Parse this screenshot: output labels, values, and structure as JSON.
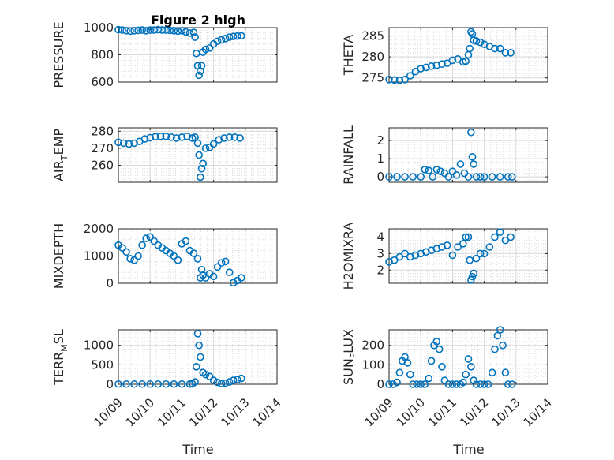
{
  "figure": {
    "title": "Figure 2 high",
    "x_axis_label": "Time",
    "marker_color": "#0072BD"
  },
  "chart_data": [
    {
      "type": "scatter",
      "ylabel": "PRESSURE",
      "xlim": [
        "10/09",
        "10/14"
      ],
      "ylim": [
        600,
        1000
      ],
      "yticks": [
        600,
        800,
        1000
      ],
      "xtick_labels": [
        "10/09",
        "10/10",
        "10/11",
        "10/12",
        "10/13",
        "10/14"
      ],
      "show_xtick_labels": false,
      "grid": "on",
      "x": [
        "10/09 00:00",
        "10/09 03:00",
        "10/09 06:00",
        "10/09 09:00",
        "10/09 12:00",
        "10/09 15:00",
        "10/09 18:00",
        "10/09 21:00",
        "10/10 00:00",
        "10/10 03:00",
        "10/10 06:00",
        "10/10 09:00",
        "10/10 12:00",
        "10/10 15:00",
        "10/10 18:00",
        "10/10 21:00",
        "10/11 00:00",
        "10/11 03:00",
        "10/11 06:00",
        "10/11 09:00",
        "10/11 10:00",
        "10/11 11:00",
        "10/11 12:00",
        "10/11 13:00",
        "10/11 14:00",
        "10/11 15:00",
        "10/11 16:00",
        "10/11 18:00",
        "10/11 21:00",
        "10/12 00:00",
        "10/12 03:00",
        "10/12 06:00",
        "10/12 09:00",
        "10/12 12:00",
        "10/12 15:00",
        "10/12 18:00",
        "10/12 21:00"
      ],
      "y": [
        985,
        982,
        978,
        975,
        978,
        980,
        982,
        978,
        982,
        982,
        985,
        983,
        982,
        980,
        978,
        975,
        978,
        968,
        960,
        965,
        930,
        810,
        720,
        650,
        680,
        720,
        820,
        840,
        850,
        880,
        900,
        910,
        920,
        930,
        935,
        938,
        940
      ]
    },
    {
      "type": "scatter",
      "ylabel": "THETA",
      "xlim": [
        "10/09",
        "10/14"
      ],
      "ylim": [
        274,
        287
      ],
      "yticks": [
        275,
        280,
        285
      ],
      "xtick_labels": [
        "10/09",
        "10/10",
        "10/11",
        "10/12",
        "10/13",
        "10/14"
      ],
      "show_xtick_labels": false,
      "grid": "on",
      "x": [
        "10/09 00:00",
        "10/09 04:00",
        "10/09 08:00",
        "10/09 12:00",
        "10/09 16:00",
        "10/09 20:00",
        "10/10 00:00",
        "10/10 04:00",
        "10/10 08:00",
        "10/10 12:00",
        "10/10 16:00",
        "10/10 20:00",
        "10/11 00:00",
        "10/11 04:00",
        "10/11 08:00",
        "10/11 10:00",
        "10/11 12:00",
        "10/11 13:00",
        "10/11 14:00",
        "10/11 15:00",
        "10/11 16:00",
        "10/11 18:00",
        "10/11 21:00",
        "10/12 00:00",
        "10/12 04:00",
        "10/12 08:00",
        "10/12 12:00",
        "10/12 16:00",
        "10/12 20:00"
      ],
      "y": [
        274.6,
        274.5,
        274.4,
        274.6,
        275.5,
        276.5,
        277.2,
        277.5,
        277.8,
        278.0,
        278.3,
        278.5,
        279.2,
        279.5,
        278.8,
        279.0,
        280.5,
        282.0,
        286.0,
        285.5,
        284.0,
        283.8,
        283.5,
        283.0,
        282.5,
        282.0,
        282.0,
        281.0,
        281.0
      ]
    },
    {
      "type": "scatter",
      "ylabel": "AIR_TEMP",
      "xlim": [
        "10/09",
        "10/14"
      ],
      "ylim": [
        250,
        282
      ],
      "yticks": [
        260,
        270,
        280
      ],
      "xtick_labels": [
        "10/09",
        "10/10",
        "10/11",
        "10/12",
        "10/13",
        "10/14"
      ],
      "show_xtick_labels": false,
      "grid": "on",
      "x": [
        "10/09 00:00",
        "10/09 04:00",
        "10/09 08:00",
        "10/09 12:00",
        "10/09 16:00",
        "10/09 20:00",
        "10/10 00:00",
        "10/10 04:00",
        "10/10 08:00",
        "10/10 12:00",
        "10/10 16:00",
        "10/10 20:00",
        "10/11 00:00",
        "10/11 04:00",
        "10/11 08:00",
        "10/11 10:00",
        "10/11 12:00",
        "10/11 13:00",
        "10/11 14:00",
        "10/11 15:00",
        "10/11 16:00",
        "10/11 18:00",
        "10/11 21:00",
        "10/12 00:00",
        "10/12 04:00",
        "10/12 08:00",
        "10/12 12:00",
        "10/12 16:00",
        "10/12 20:00"
      ],
      "y": [
        273.5,
        273.0,
        272.5,
        273.0,
        274.0,
        275.5,
        276.2,
        276.8,
        277.0,
        277.0,
        276.5,
        276.0,
        276.5,
        277.0,
        276.0,
        276.5,
        273.0,
        266.0,
        253.0,
        258.0,
        261.0,
        270.0,
        270.5,
        272.5,
        275.0,
        276.0,
        276.5,
        276.5,
        276.0
      ]
    },
    {
      "type": "scatter",
      "ylabel": "RAINFALL",
      "xlim": [
        "10/09",
        "10/14"
      ],
      "ylim": [
        -0.3,
        2.7
      ],
      "yticks": [
        0,
        1,
        2
      ],
      "xtick_labels": [
        "10/09",
        "10/10",
        "10/11",
        "10/12",
        "10/13",
        "10/14"
      ],
      "show_xtick_labels": false,
      "grid": "on",
      "x": [
        "10/09 00:00",
        "10/09 06:00",
        "10/09 12:00",
        "10/09 18:00",
        "10/10 00:00",
        "10/10 03:00",
        "10/10 06:00",
        "10/10 09:00",
        "10/10 12:00",
        "10/10 15:00",
        "10/10 18:00",
        "10/10 21:00",
        "10/11 00:00",
        "10/11 03:00",
        "10/11 06:00",
        "10/11 09:00",
        "10/11 12:00",
        "10/11 14:00",
        "10/11 15:00",
        "10/11 16:00",
        "10/11 18:00",
        "10/11 21:00",
        "10/12 00:00",
        "10/12 06:00",
        "10/12 12:00",
        "10/12 18:00",
        "10/12 21:00"
      ],
      "y": [
        0,
        0,
        0,
        0,
        0,
        0.4,
        0.35,
        0,
        0.4,
        0.3,
        0.2,
        0,
        0.3,
        0.1,
        0.7,
        0.2,
        0,
        2.45,
        1.1,
        0.7,
        0,
        0,
        0,
        0,
        0,
        0,
        0
      ]
    },
    {
      "type": "scatter",
      "ylabel": "MIXDEPTH",
      "xlim": [
        "10/09",
        "10/14"
      ],
      "ylim": [
        0,
        2000
      ],
      "yticks": [
        0,
        1000,
        2000
      ],
      "xtick_labels": [
        "10/09",
        "10/10",
        "10/11",
        "10/12",
        "10/13",
        "10/14"
      ],
      "show_xtick_labels": false,
      "grid": "on",
      "x": [
        "10/09 00:00",
        "10/09 03:00",
        "10/09 06:00",
        "10/09 09:00",
        "10/09 12:00",
        "10/09 15:00",
        "10/09 18:00",
        "10/09 21:00",
        "10/10 00:00",
        "10/10 03:00",
        "10/10 06:00",
        "10/10 09:00",
        "10/10 12:00",
        "10/10 15:00",
        "10/10 18:00",
        "10/10 21:00",
        "10/11 00:00",
        "10/11 03:00",
        "10/11 06:00",
        "10/11 09:00",
        "10/11 12:00",
        "10/11 14:00",
        "10/11 15:00",
        "10/11 16:00",
        "10/11 18:00",
        "10/11 21:00",
        "10/12 00:00",
        "10/12 03:00",
        "10/12 06:00",
        "10/12 09:00",
        "10/12 12:00",
        "10/12 15:00",
        "10/12 18:00",
        "10/12 21:00"
      ],
      "y": [
        1400,
        1300,
        1150,
        900,
        850,
        1000,
        1400,
        1650,
        1700,
        1550,
        1400,
        1300,
        1200,
        1100,
        1000,
        850,
        1450,
        1550,
        1200,
        1100,
        900,
        200,
        500,
        300,
        200,
        350,
        250,
        600,
        750,
        800,
        400,
        20,
        100,
        200
      ]
    },
    {
      "type": "scatter",
      "ylabel": "H2OMIXRA",
      "xlim": [
        "10/09",
        "10/14"
      ],
      "ylim": [
        1.2,
        4.5
      ],
      "yticks": [
        2,
        3,
        4
      ],
      "xtick_labels": [
        "10/09",
        "10/10",
        "10/11",
        "10/12",
        "10/13",
        "10/14"
      ],
      "show_xtick_labels": false,
      "grid": "on",
      "x": [
        "10/09 00:00",
        "10/09 04:00",
        "10/09 08:00",
        "10/09 12:00",
        "10/09 16:00",
        "10/09 20:00",
        "10/10 00:00",
        "10/10 04:00",
        "10/10 08:00",
        "10/10 12:00",
        "10/10 16:00",
        "10/10 20:00",
        "10/11 00:00",
        "10/11 04:00",
        "10/11 08:00",
        "10/11 10:00",
        "10/11 12:00",
        "10/11 13:00",
        "10/11 14:00",
        "10/11 15:00",
        "10/11 16:00",
        "10/11 18:00",
        "10/11 21:00",
        "10/12 00:00",
        "10/12 04:00",
        "10/12 08:00",
        "10/12 12:00",
        "10/12 16:00",
        "10/12 20:00"
      ],
      "y": [
        2.5,
        2.6,
        2.8,
        3.0,
        2.8,
        2.9,
        3.0,
        3.1,
        3.2,
        3.3,
        3.4,
        3.5,
        2.9,
        3.4,
        3.6,
        4.0,
        4.0,
        2.6,
        1.4,
        1.6,
        1.8,
        2.7,
        3.0,
        3.0,
        3.4,
        4.0,
        4.3,
        3.8,
        4.0
      ]
    },
    {
      "type": "scatter",
      "ylabel": "TERR_MSL",
      "xlim": [
        "10/09",
        "10/14"
      ],
      "ylim": [
        0,
        1400
      ],
      "yticks": [
        0,
        500,
        1000
      ],
      "xtick_labels": [
        "10/09",
        "10/10",
        "10/11",
        "10/12",
        "10/13",
        "10/14"
      ],
      "show_xtick_labels": true,
      "grid": "on",
      "x": [
        "10/09 00:00",
        "10/09 06:00",
        "10/09 12:00",
        "10/09 18:00",
        "10/10 00:00",
        "10/10 06:00",
        "10/10 12:00",
        "10/10 18:00",
        "10/11 00:00",
        "10/11 06:00",
        "10/11 08:00",
        "10/11 10:00",
        "10/11 11:00",
        "10/11 12:00",
        "10/11 13:00",
        "10/11 14:00",
        "10/11 16:00",
        "10/11 18:00",
        "10/11 21:00",
        "10/12 00:00",
        "10/12 03:00",
        "10/12 06:00",
        "10/12 09:00",
        "10/12 12:00",
        "10/12 15:00",
        "10/12 18:00",
        "10/12 21:00"
      ],
      "y": [
        5,
        5,
        5,
        5,
        5,
        5,
        5,
        5,
        5,
        5,
        10,
        60,
        450,
        1300,
        1000,
        700,
        300,
        250,
        200,
        100,
        50,
        20,
        30,
        60,
        100,
        120,
        150
      ]
    },
    {
      "type": "scatter",
      "ylabel": "SUN_FLUX",
      "xlim": [
        "10/09",
        "10/14"
      ],
      "ylim": [
        0,
        280
      ],
      "yticks": [
        0,
        100,
        200
      ],
      "xtick_labels": [
        "10/09",
        "10/10",
        "10/11",
        "10/12",
        "10/13",
        "10/14"
      ],
      "show_xtick_labels": true,
      "grid": "on",
      "x": [
        "10/09 00:00",
        "10/09 03:00",
        "10/09 06:00",
        "10/09 08:00",
        "10/09 10:00",
        "10/09 12:00",
        "10/09 14:00",
        "10/09 16:00",
        "10/09 18:00",
        "10/09 21:00",
        "10/10 00:00",
        "10/10 03:00",
        "10/10 06:00",
        "10/10 08:00",
        "10/10 10:00",
        "10/10 12:00",
        "10/10 14:00",
        "10/10 16:00",
        "10/10 18:00",
        "10/10 21:00",
        "10/11 00:00",
        "10/11 03:00",
        "10/11 06:00",
        "10/11 08:00",
        "10/11 10:00",
        "10/11 12:00",
        "10/11 14:00",
        "10/11 16:00",
        "10/11 18:00",
        "10/11 21:00",
        "10/12 00:00",
        "10/12 03:00",
        "10/12 06:00",
        "10/12 08:00",
        "10/12 10:00",
        "10/12 12:00",
        "10/12 14:00",
        "10/12 16:00",
        "10/12 18:00",
        "10/12 21:00"
      ],
      "y": [
        0,
        0,
        10,
        60,
        120,
        140,
        110,
        50,
        0,
        0,
        0,
        0,
        30,
        120,
        200,
        220,
        180,
        90,
        20,
        0,
        0,
        0,
        0,
        10,
        50,
        130,
        90,
        20,
        0,
        0,
        0,
        0,
        60,
        180,
        250,
        280,
        200,
        60,
        0,
        0
      ]
    }
  ]
}
